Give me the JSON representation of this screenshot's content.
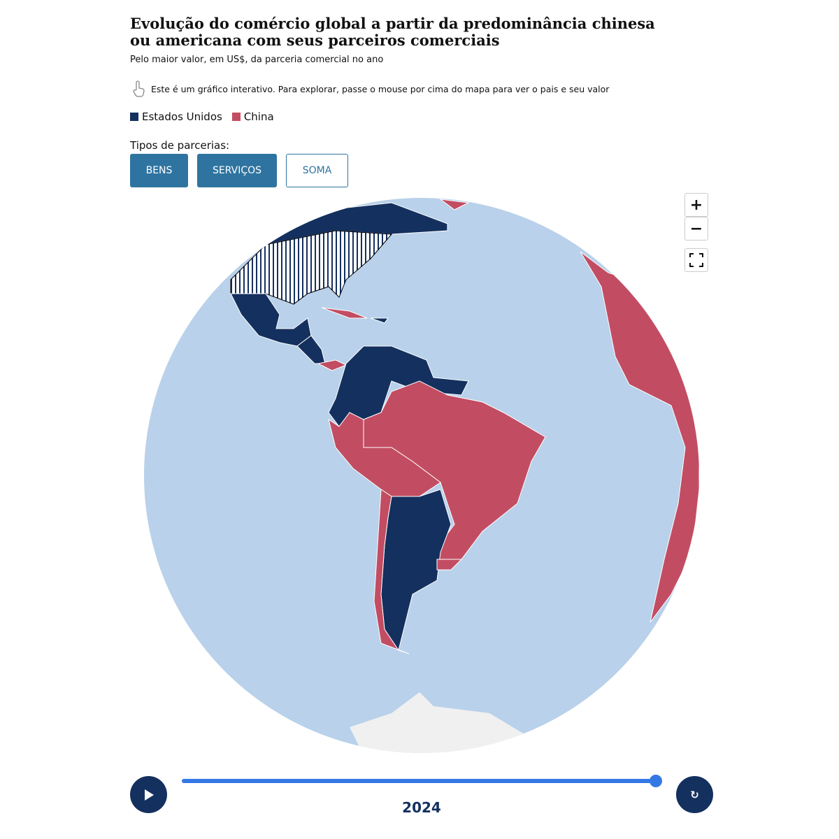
{
  "title": "Evolução do comércio global a partir da predominância chinesa ou americana com seus parceiros comerciais",
  "subtitle": "Pelo maior valor, em US$, da parceria comercial no ano",
  "hint": {
    "icon": "hand-pointer-icon",
    "text": "Este é um gráfico interativo. Para explorar, passe o mouse por cima do mapa para ver o pais e seu valor"
  },
  "legend": [
    {
      "label": "Estados Unidos",
      "color": "#14305e"
    },
    {
      "label": "China",
      "color": "#c24d63"
    }
  ],
  "types_label": "Tipos de parcerias:",
  "buttons": [
    {
      "label": "BENS",
      "active": true
    },
    {
      "label": "SERVIÇOS",
      "active": true
    },
    {
      "label": "SOMA",
      "active": false
    }
  ],
  "zoom": {
    "in": "+",
    "out": "−",
    "fullscreen_icon": "fullscreen-icon"
  },
  "colors": {
    "ocean": "#b9d1ea",
    "us": "#14305e",
    "china": "#c24d63",
    "antarctica": "#f0f0f0"
  },
  "timeline": {
    "year": "2024",
    "progress": 1.0,
    "play_icon": "play-icon",
    "reset_icon": "reset-icon",
    "reset_glyph": "↻"
  }
}
